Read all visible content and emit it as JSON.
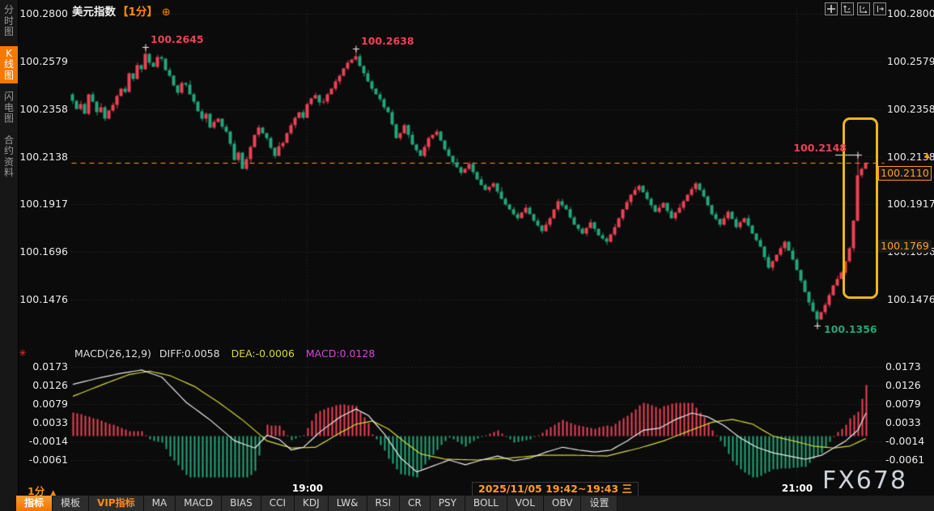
{
  "header": {
    "title": "美元指数",
    "period_tag": "【1分】",
    "add_icon": "⊕"
  },
  "sidebar": {
    "items": [
      {
        "label": "分时图",
        "active": false
      },
      {
        "label": "K线图",
        "active": true
      },
      {
        "label": "闪电图",
        "active": false
      },
      {
        "label": "合约资料",
        "active": false
      }
    ]
  },
  "chart_tools": [
    "pan-icon",
    "scale-y-axis-icon",
    "scale-x-axis-icon",
    "shift-right-icon"
  ],
  "indicator_header": {
    "name": "MACD(26,12,9)",
    "diff": "DIFF:0.0058",
    "dea": "DEA:-0.0006",
    "macd": "MACD:0.0128"
  },
  "indicator_dot_icon": "✳",
  "time_axis": {
    "period": "1分",
    "period_arrow": "▲",
    "range_label": "2025/11/05 19:42~19:43 三",
    "ticks": [
      {
        "label": "19:00",
        "idx": 58
      },
      {
        "label": "21:00",
        "idx": 179
      }
    ]
  },
  "bottom_tabs": [
    {
      "label": "指标",
      "state": "active"
    },
    {
      "label": "模板",
      "state": "normal"
    },
    {
      "label": "VIP指标",
      "state": "vip"
    },
    {
      "label": "MA",
      "state": "normal"
    },
    {
      "label": "MACD",
      "state": "normal"
    },
    {
      "label": "BIAS",
      "state": "normal"
    },
    {
      "label": "CCI",
      "state": "normal"
    },
    {
      "label": "KDJ",
      "state": "normal"
    },
    {
      "label": "LW&",
      "state": "normal"
    },
    {
      "label": "RSI",
      "state": "normal"
    },
    {
      "label": "CR",
      "state": "normal"
    },
    {
      "label": "PSY",
      "state": "normal"
    },
    {
      "label": "BOLL",
      "state": "normal"
    },
    {
      "label": "VOL",
      "state": "normal"
    },
    {
      "label": "OBV",
      "state": "normal"
    },
    {
      "label": "设置",
      "state": "normal"
    }
  ],
  "watermark": "FX678",
  "axis_flags": {
    "arrow_icon": "▲",
    "arrow_price": 100.2138,
    "last_price": {
      "text": "100.2110",
      "price": 100.211
    },
    "secondary": {
      "text": "100.1769",
      "price": 100.1769
    }
  },
  "colors": {
    "up": "#ee4156",
    "down": "#23a67c",
    "accent": "#ff8a00",
    "diff_line": "#ebebeb",
    "dea_line": "#d6d838",
    "macd_value": "#d944e0",
    "dashed_line": "#ff9d2e",
    "highlight_box": "#eeb618",
    "grid": "rgba(220,220,220,0.20)",
    "watermark": "#ccd2da"
  },
  "chart_data": [
    {
      "type": "candlestick",
      "title": "美元指数 1分",
      "price_axis_labels": [
        "100.2800",
        "100.2579",
        "100.2358",
        "100.2138",
        "100.1917",
        "100.1696",
        "100.1476"
      ],
      "open0": 100.243,
      "closes": [
        100.24,
        100.236,
        100.2385,
        100.234,
        100.243,
        100.2395,
        100.2345,
        100.237,
        100.2315,
        100.2355,
        100.238,
        100.242,
        100.2455,
        100.244,
        100.2525,
        100.25,
        100.2565,
        100.2545,
        100.2615,
        100.2575,
        100.2555,
        100.26,
        100.2595,
        100.254,
        100.2515,
        100.247,
        100.2435,
        100.248,
        100.2475,
        100.243,
        100.2395,
        100.235,
        100.2315,
        100.234,
        100.2275,
        100.23,
        100.2315,
        100.228,
        100.2255,
        100.22,
        100.2125,
        100.216,
        100.2085,
        100.213,
        100.2185,
        100.224,
        100.2275,
        100.225,
        100.2225,
        100.218,
        100.2145,
        100.219,
        100.2205,
        100.225,
        100.2285,
        100.232,
        100.2345,
        100.232,
        100.2385,
        100.241,
        100.2425,
        100.239,
        100.2395,
        100.243,
        100.2455,
        100.249,
        100.2515,
        100.255,
        100.2575,
        100.259,
        100.2605,
        100.256,
        100.2525,
        100.249,
        100.2455,
        100.243,
        100.2405,
        100.237,
        100.2345,
        100.229,
        100.2225,
        100.225,
        100.2285,
        100.224,
        100.2195,
        100.217,
        100.2145,
        100.2185,
        100.2225,
        100.224,
        100.2255,
        100.2215,
        100.2175,
        100.2145,
        100.2115,
        100.209,
        100.2065,
        100.2085,
        100.2105,
        100.207,
        100.2035,
        100.201,
        100.1985,
        100.2,
        100.2015,
        100.198,
        100.1945,
        100.192,
        100.1895,
        100.1875,
        100.1855,
        100.188,
        100.1905,
        100.1875,
        100.1845,
        100.182,
        100.1795,
        100.1825,
        100.1855,
        100.1895,
        100.1935,
        100.1915,
        100.1895,
        100.186,
        100.1825,
        100.1805,
        100.1785,
        100.181,
        100.1835,
        100.1805,
        100.1775,
        100.176,
        100.1745,
        100.178,
        100.1815,
        100.1855,
        100.1895,
        100.193,
        100.1965,
        100.1985,
        100.2005,
        100.1975,
        100.1945,
        100.1915,
        100.1885,
        100.1905,
        100.1925,
        100.189,
        100.1855,
        100.188,
        100.1905,
        100.1935,
        100.1965,
        100.199,
        100.2015,
        100.1985,
        100.1955,
        100.1915,
        100.1875,
        100.185,
        100.1825,
        100.1855,
        100.1885,
        100.185,
        100.1815,
        100.1835,
        100.1855,
        100.182,
        100.1785,
        100.1755,
        100.1725,
        100.1675,
        100.1625,
        100.1655,
        100.1685,
        100.1715,
        100.1745,
        100.1705,
        100.1665,
        100.1615,
        100.1565,
        100.1515,
        100.1465,
        100.1425,
        100.1385,
        100.142,
        100.1455,
        100.15,
        100.1545,
        100.1575,
        100.1605,
        100.1655,
        100.1715,
        100.1845,
        100.2055,
        100.2085,
        100.211
      ],
      "wick_hi_pattern": [
        0.0008,
        0.0003,
        0.0013,
        0.0005,
        0.0002,
        0.001,
        0.0004,
        0.0016,
        0.0006,
        0.0002,
        0.0011
      ],
      "wick_lo_pattern": [
        0.0004,
        0.0012,
        0.0002,
        0.0009,
        0.0015,
        0.0003,
        0.0007,
        0.0002,
        0.001,
        0.0005,
        0.0013
      ],
      "wick_overrides": {
        "18": {
          "high": 100.2645
        },
        "70": {
          "high": 100.2638
        },
        "184": {
          "low": 100.1356
        },
        "194": {
          "high": 100.2148
        }
      },
      "last_price": 100.211,
      "annotations": [
        {
          "text": "100.2645",
          "price": 100.2645,
          "idx": 18,
          "color": "up",
          "placement": "above-right"
        },
        {
          "text": "100.2638",
          "price": 100.2638,
          "idx": 70,
          "color": "up",
          "placement": "above-right"
        },
        {
          "text": "100.1356",
          "price": 100.1356,
          "idx": 184,
          "color": "down",
          "placement": "below-right"
        },
        {
          "text": "100.2148",
          "price": 100.2148,
          "idx": 194,
          "color": "up",
          "placement": "left",
          "tick": true
        }
      ],
      "highlight_region": {
        "idx_from": 191,
        "idx_to": 199,
        "price_from": 100.149,
        "price_to": 100.231
      }
    },
    {
      "type": "macd",
      "params": [
        26,
        12,
        9
      ],
      "macd_axis_labels": [
        "0.0173",
        "0.0126",
        "0.0079",
        "0.0033",
        "-0.0014",
        "-0.0061"
      ],
      "hist_multiplier": 2,
      "diff_keypoints": [
        [
          0,
          0.013
        ],
        [
          6,
          0.0145
        ],
        [
          12,
          0.0158
        ],
        [
          17,
          0.0166
        ],
        [
          22,
          0.0148
        ],
        [
          28,
          0.0085
        ],
        [
          34,
          0.004
        ],
        [
          40,
          -0.0012
        ],
        [
          45,
          -0.003
        ],
        [
          48,
          0.0002
        ],
        [
          51,
          -0.0008
        ],
        [
          54,
          -0.0035
        ],
        [
          57,
          -0.0028
        ],
        [
          61,
          0.001
        ],
        [
          66,
          0.0048
        ],
        [
          70,
          0.0068
        ],
        [
          73,
          0.0052
        ],
        [
          77,
          0.0005
        ],
        [
          81,
          -0.0055
        ],
        [
          85,
          -0.009
        ],
        [
          89,
          -0.0075
        ],
        [
          93,
          -0.006
        ],
        [
          97,
          -0.0072
        ],
        [
          101,
          -0.006
        ],
        [
          105,
          -0.005
        ],
        [
          109,
          -0.0062
        ],
        [
          113,
          -0.0055
        ],
        [
          117,
          -0.004
        ],
        [
          121,
          -0.0028
        ],
        [
          125,
          -0.0035
        ],
        [
          129,
          -0.004
        ],
        [
          133,
          -0.0035
        ],
        [
          137,
          -0.0012
        ],
        [
          141,
          0.0015
        ],
        [
          145,
          0.002
        ],
        [
          149,
          0.0042
        ],
        [
          153,
          0.0058
        ],
        [
          157,
          0.0048
        ],
        [
          161,
          0.0026
        ],
        [
          165,
          -0.0005
        ],
        [
          169,
          -0.0028
        ],
        [
          173,
          -0.0042
        ],
        [
          177,
          -0.005
        ],
        [
          181,
          -0.0058
        ],
        [
          185,
          -0.0048
        ],
        [
          188,
          -0.003
        ],
        [
          191,
          -0.0012
        ],
        [
          194,
          0.0015
        ],
        [
          196,
          0.0058
        ]
      ],
      "dea_keypoints": [
        [
          0,
          0.01
        ],
        [
          8,
          0.0132
        ],
        [
          14,
          0.0155
        ],
        [
          19,
          0.0163
        ],
        [
          24,
          0.0152
        ],
        [
          30,
          0.0125
        ],
        [
          36,
          0.0085
        ],
        [
          42,
          0.004
        ],
        [
          48,
          -0.0012
        ],
        [
          54,
          -0.003
        ],
        [
          60,
          -0.0028
        ],
        [
          66,
          0.0008
        ],
        [
          70,
          0.003
        ],
        [
          74,
          0.0038
        ],
        [
          78,
          0.0018
        ],
        [
          82,
          -0.0015
        ],
        [
          86,
          -0.0045
        ],
        [
          92,
          -0.0058
        ],
        [
          100,
          -0.006
        ],
        [
          108,
          -0.0055
        ],
        [
          116,
          -0.0048
        ],
        [
          124,
          -0.0048
        ],
        [
          132,
          -0.005
        ],
        [
          140,
          -0.003
        ],
        [
          146,
          -0.0012
        ],
        [
          152,
          0.0012
        ],
        [
          158,
          0.0035
        ],
        [
          163,
          0.0042
        ],
        [
          168,
          0.003
        ],
        [
          173,
          0.0
        ],
        [
          178,
          -0.0012
        ],
        [
          183,
          -0.0025
        ],
        [
          188,
          -0.003
        ],
        [
          192,
          -0.0025
        ],
        [
          196,
          -0.0006
        ]
      ]
    }
  ]
}
